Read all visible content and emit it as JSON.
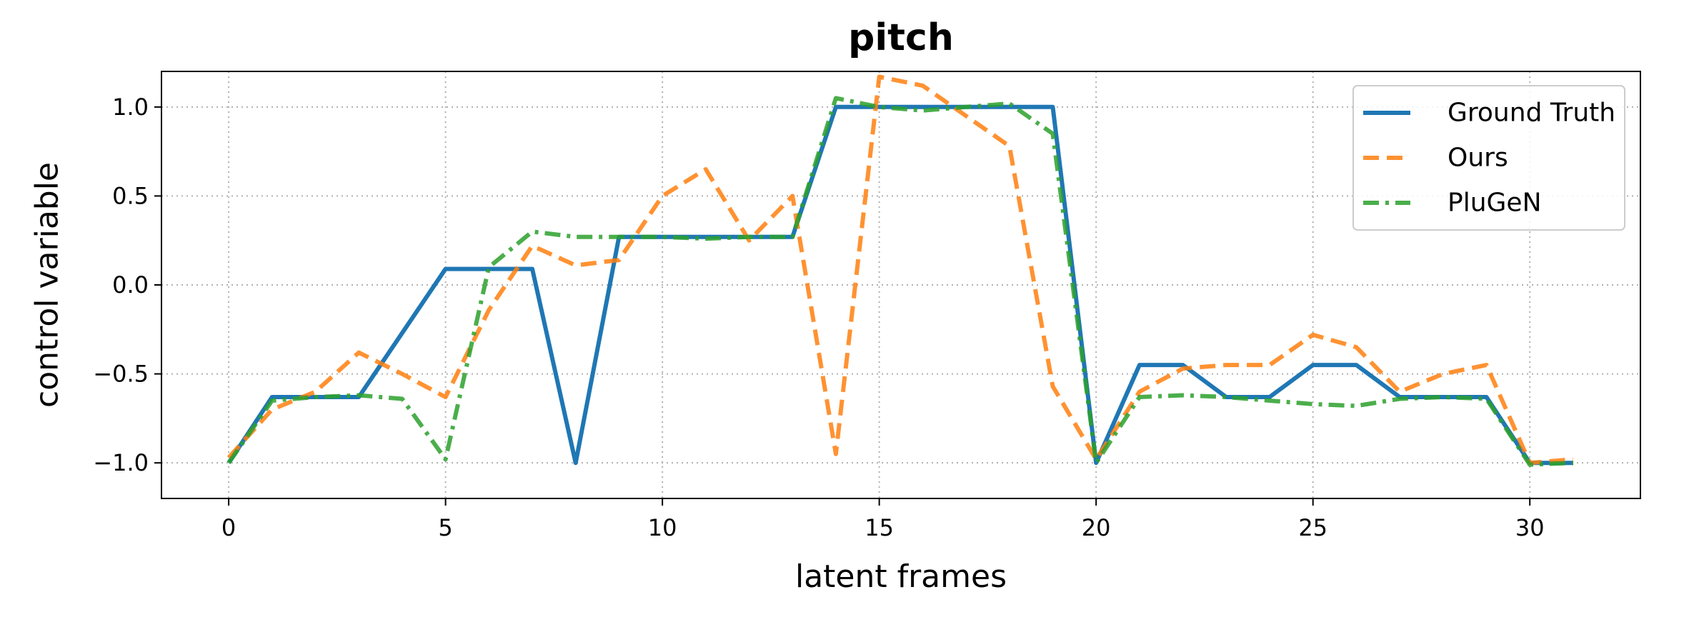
{
  "chart_data": {
    "type": "line",
    "title": "pitch",
    "xlabel": "latent frames",
    "ylabel": "control variable",
    "xlim": [
      -1.55,
      32.55
    ],
    "ylim": [
      -1.2,
      1.2
    ],
    "xticks": [
      0,
      5,
      10,
      15,
      20,
      25,
      30
    ],
    "xtick_labels": [
      "0",
      "5",
      "10",
      "15",
      "20",
      "25",
      "30"
    ],
    "yticks": [
      -1.0,
      -0.5,
      0.0,
      0.5,
      1.0
    ],
    "ytick_labels": [
      "−1.0",
      "−0.5",
      "0.0",
      "0.5",
      "1.0"
    ],
    "grid": true,
    "legend_position": "top-right",
    "x": [
      0,
      1,
      2,
      3,
      4,
      5,
      6,
      7,
      8,
      9,
      10,
      11,
      12,
      13,
      14,
      15,
      16,
      17,
      18,
      19,
      20,
      21,
      22,
      23,
      24,
      25,
      26,
      27,
      28,
      29,
      30,
      31
    ],
    "series": [
      {
        "name": "Ground Truth",
        "color": "#1f77b4",
        "dash": "solid",
        "values": [
          -1.0,
          -0.63,
          -0.63,
          -0.63,
          -0.27,
          0.09,
          0.09,
          0.09,
          -1.0,
          0.27,
          0.27,
          0.27,
          0.27,
          0.27,
          1.0,
          1.0,
          1.0,
          1.0,
          1.0,
          1.0,
          -1.0,
          -0.45,
          -0.45,
          -0.63,
          -0.63,
          -0.45,
          -0.45,
          -0.63,
          -0.63,
          -0.63,
          -1.0,
          -1.0
        ]
      },
      {
        "name": "Ours",
        "color": "#ff7f0e",
        "dash": "dashed",
        "values": [
          -0.97,
          -0.7,
          -0.6,
          -0.38,
          -0.5,
          -0.63,
          -0.14,
          0.22,
          0.11,
          0.14,
          0.5,
          0.65,
          0.25,
          0.5,
          -0.95,
          1.17,
          1.12,
          0.95,
          0.78,
          -0.57,
          -0.98,
          -0.6,
          -0.47,
          -0.45,
          -0.45,
          -0.28,
          -0.35,
          -0.6,
          -0.5,
          -0.45,
          -1.0,
          -0.98
        ]
      },
      {
        "name": "PluGeN",
        "color": "#2ca02c",
        "dash": "dashdot",
        "values": [
          -1.0,
          -0.65,
          -0.63,
          -0.62,
          -0.64,
          -0.98,
          0.1,
          0.3,
          0.27,
          0.27,
          0.27,
          0.26,
          0.27,
          0.27,
          1.05,
          1.0,
          0.98,
          1.0,
          1.02,
          0.85,
          -1.0,
          -0.63,
          -0.62,
          -0.63,
          -0.65,
          -0.67,
          -0.68,
          -0.64,
          -0.63,
          -0.64,
          -1.01,
          -1.0
        ]
      }
    ]
  }
}
